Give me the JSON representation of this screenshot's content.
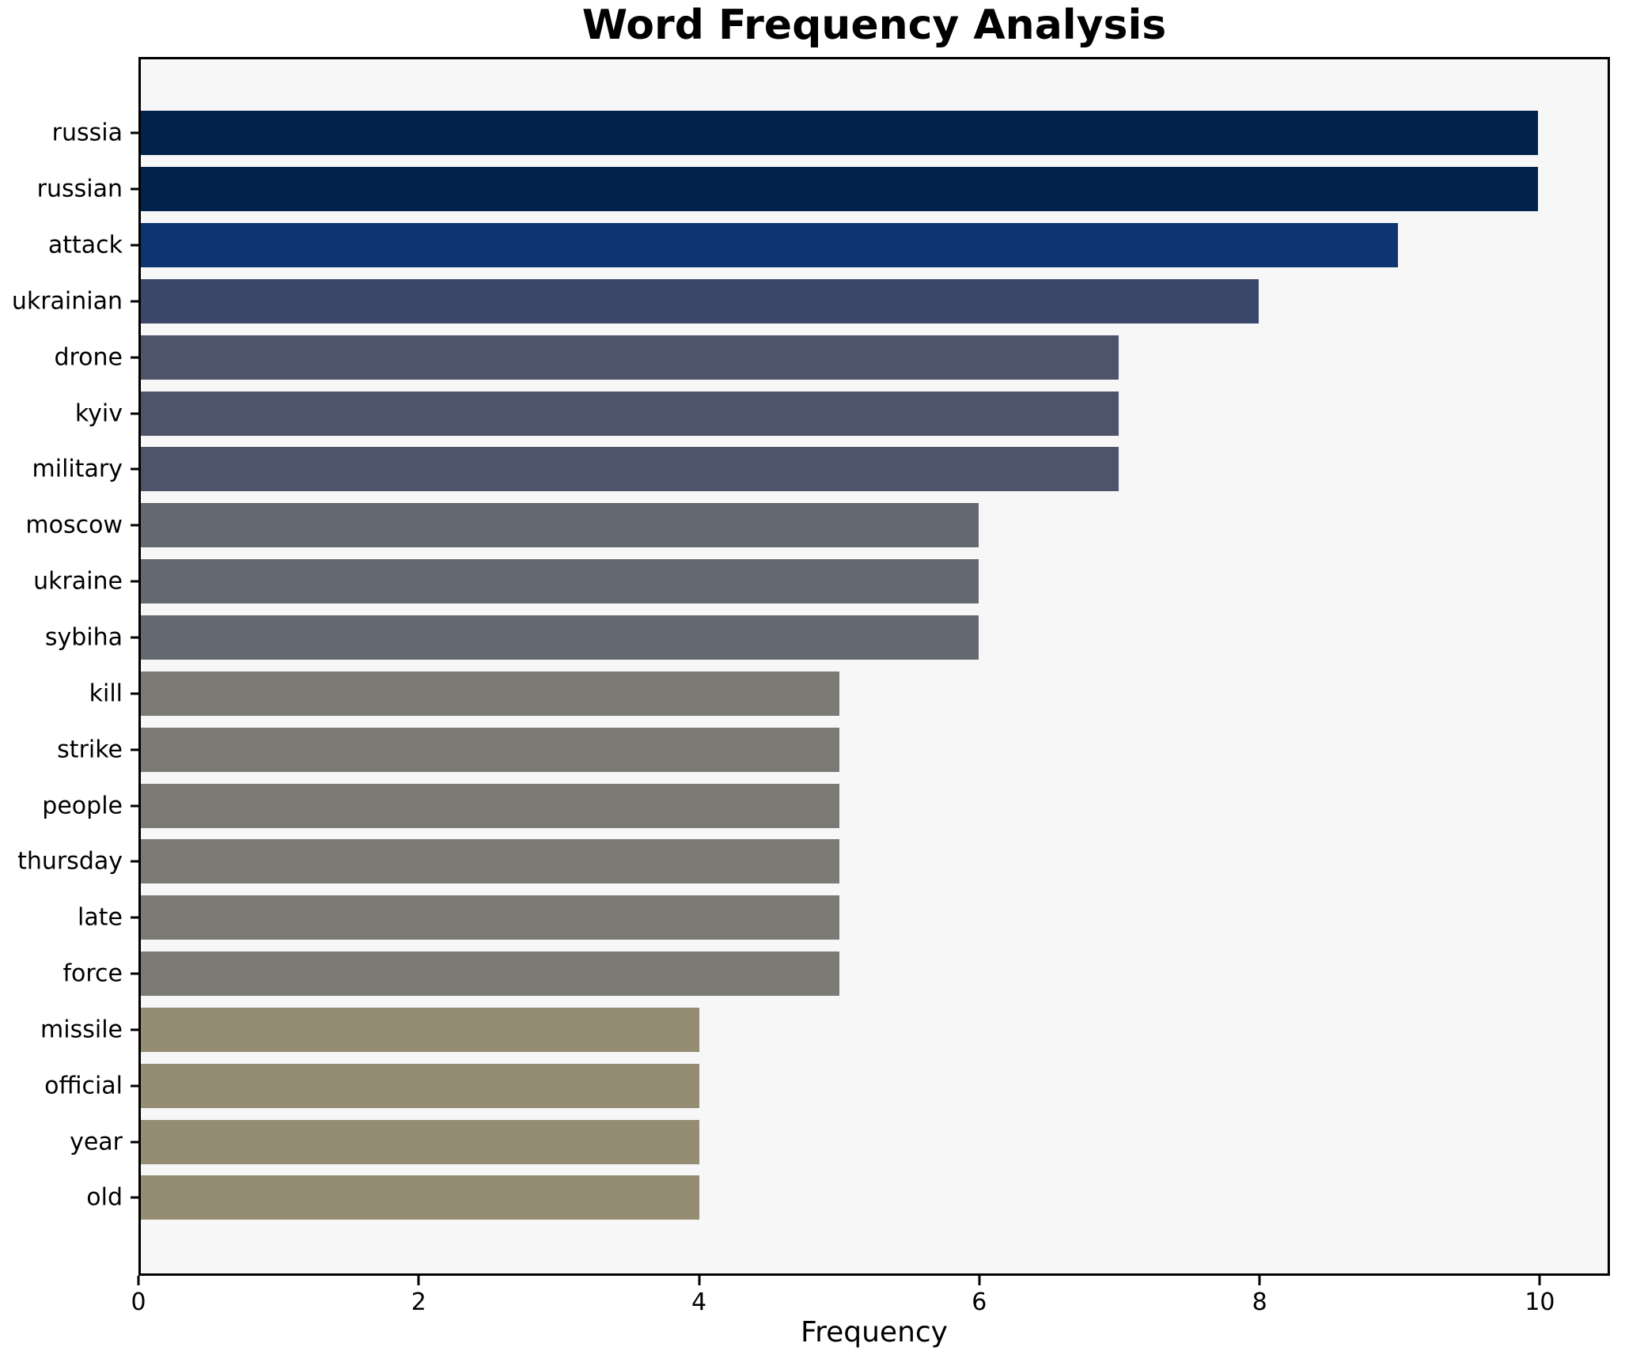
{
  "figure": {
    "title": "Word Frequency Analysis",
    "xlabel": "Frequency"
  },
  "chart_data": {
    "type": "bar",
    "orientation": "horizontal",
    "title": "Word Frequency Analysis",
    "xlabel": "Frequency",
    "ylabel": "",
    "categories": [
      "russia",
      "russian",
      "attack",
      "ukrainian",
      "drone",
      "kyiv",
      "military",
      "moscow",
      "ukraine",
      "sybiha",
      "kill",
      "strike",
      "people",
      "thursday",
      "late",
      "force",
      "missile",
      "official",
      "year",
      "old"
    ],
    "values": [
      10,
      10,
      9,
      8,
      7,
      7,
      7,
      6,
      6,
      6,
      5,
      5,
      5,
      5,
      5,
      5,
      4,
      4,
      4,
      4
    ],
    "bar_colors": [
      "#02224e",
      "#02224e",
      "#0c3572",
      "#3a476b",
      "#4e556b",
      "#4e556b",
      "#4e556b",
      "#646871",
      "#646871",
      "#646871",
      "#7b7a74",
      "#7b7a74",
      "#7b7a74",
      "#7b7a74",
      "#7b7a74",
      "#7b7a74",
      "#948c73",
      "#948c73",
      "#948c73",
      "#948c73"
    ],
    "xticks": [
      0,
      2,
      4,
      6,
      8,
      10
    ],
    "xlim": [
      0,
      10.5
    ],
    "grid": false,
    "legend": null,
    "plot_background": "#f7f7f7",
    "spine_color": "#000000",
    "text_color": "#000000",
    "bar_height_fraction": 0.79
  }
}
